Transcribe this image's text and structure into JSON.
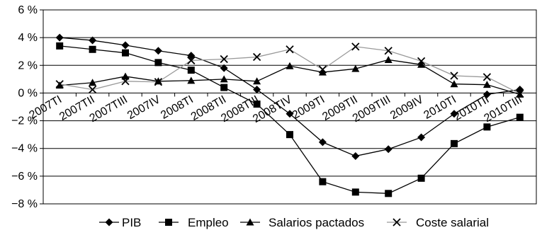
{
  "chart_data": {
    "type": "line",
    "categories": [
      "2007TI",
      "2007TII",
      "2007TIII",
      "2007IV",
      "2008TI",
      "2008TII",
      "2008TIII",
      "2008TIV",
      "2009TI",
      "2009TII",
      "2009TIII",
      "2009IV",
      "2010TI",
      "2010TII",
      "2010TIII"
    ],
    "ylim": [
      -8,
      6
    ],
    "yticks": [
      -8,
      -6,
      -4,
      -2,
      0,
      2,
      4,
      6
    ],
    "ytick_labels": [
      "−8 %",
      "−6 %",
      "−4 %",
      "−2 %",
      "0 %",
      "2 %",
      "4 %",
      "6 %"
    ],
    "grid": "horizontal",
    "legend_position": "bottom",
    "series": [
      {
        "name": "PIB",
        "marker": "diamond",
        "color": "#000000",
        "values": [
          4.0,
          3.8,
          3.45,
          3.05,
          2.7,
          1.8,
          0.25,
          -1.5,
          -3.55,
          -4.55,
          -4.05,
          -3.2,
          -1.5,
          -0.1,
          0.25
        ]
      },
      {
        "name": "Empleo",
        "marker": "square",
        "color": "#000000",
        "values": [
          3.4,
          3.15,
          2.9,
          2.2,
          1.65,
          0.4,
          -0.8,
          -3.0,
          -6.4,
          -7.15,
          -7.25,
          -6.15,
          -3.65,
          -2.45,
          -1.75
        ]
      },
      {
        "name": "Salarios pactados",
        "marker": "triangle",
        "color": "#000000",
        "values": [
          0.55,
          0.75,
          1.2,
          0.85,
          0.9,
          1.0,
          0.85,
          1.95,
          1.5,
          1.75,
          2.4,
          2.05,
          0.65,
          0.6,
          -0.1
        ]
      },
      {
        "name": "Coste salarial",
        "marker": "x",
        "color": "#999999",
        "values": [
          0.65,
          0.25,
          0.85,
          0.8,
          2.35,
          2.45,
          2.6,
          3.15,
          1.7,
          3.35,
          3.05,
          2.3,
          1.25,
          1.15,
          -0.05
        ]
      }
    ]
  }
}
